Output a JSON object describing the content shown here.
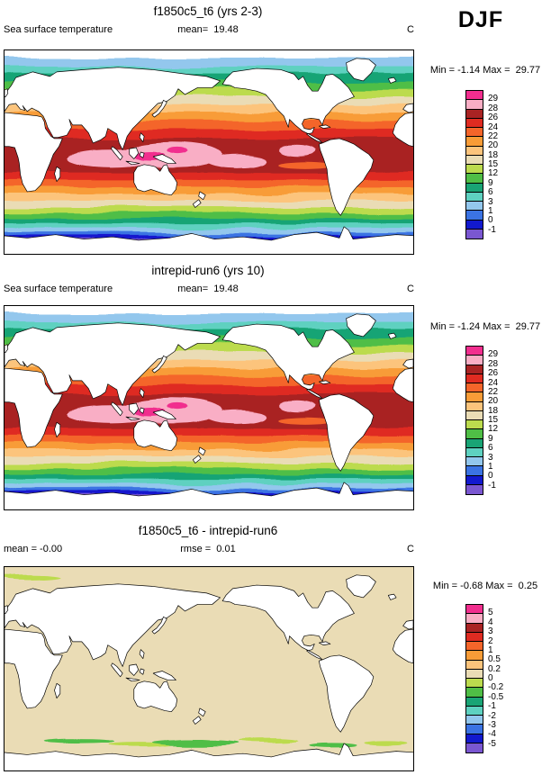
{
  "chart_data": {
    "type": "filled-contour-map-set",
    "season": "DJF",
    "panels": [
      {
        "title": "f1850c5_t6 (yrs 2-3)",
        "variable": "Sea surface temperature",
        "mean_label": "mean=  19.48",
        "units": "C",
        "minmax_label": "Min = -1.14 Max =  29.77",
        "colorbar_labels": [
          "29",
          "28",
          "26",
          "24",
          "22",
          "20",
          "18",
          "15",
          "12",
          "9",
          "6",
          "3",
          "1",
          "0",
          "-1"
        ],
        "map_kind": "sst"
      },
      {
        "title": "intrepid-run6 (yrs 10)",
        "variable": "Sea surface temperature",
        "mean_label": "mean=  19.48",
        "units": "C",
        "minmax_label": "Min = -1.24 Max =  29.77",
        "colorbar_labels": [
          "29",
          "28",
          "26",
          "24",
          "22",
          "20",
          "18",
          "15",
          "12",
          "9",
          "6",
          "3",
          "1",
          "0",
          "-1"
        ],
        "map_kind": "sst"
      },
      {
        "title": "f1850c5_t6 - intrepid-run6",
        "mean_label": "mean = -0.00",
        "rmse_label": "rmse =  0.01",
        "units": "C",
        "minmax_label": "Min = -0.68 Max =  0.25",
        "colorbar_labels": [
          "5",
          "4",
          "3",
          "2",
          "1",
          "0.5",
          "0.2",
          "0",
          "-0.2",
          "-0.5",
          "-1",
          "-2",
          "-3",
          "-4",
          "-5"
        ],
        "map_kind": "diff"
      }
    ],
    "palette_warm_to_cold": [
      "#F12E8E",
      "#F9AEC5",
      "#A92323",
      "#DF2B21",
      "#F4652A",
      "#F89C37",
      "#FCC47C",
      "#EADCB5",
      "#BCDB4E",
      "#4FBE46",
      "#19A475",
      "#5ED1C0",
      "#93C7ED",
      "#3B73E3",
      "#1219CE",
      "#7A57D1"
    ],
    "sst_latitude_bands": [
      [
        12,
        6,
        14
      ],
      [
        11,
        14,
        20
      ],
      [
        10,
        20,
        27
      ],
      [
        9,
        27,
        34
      ],
      [
        8,
        34,
        41
      ],
      [
        7,
        41,
        48
      ],
      [
        6,
        48,
        55
      ],
      [
        5,
        55,
        62
      ],
      [
        4,
        62,
        70
      ],
      [
        3,
        70,
        78
      ],
      [
        2,
        78,
        108
      ],
      [
        3,
        108,
        115
      ],
      [
        4,
        115,
        121
      ],
      [
        5,
        121,
        127
      ],
      [
        6,
        127,
        133
      ],
      [
        7,
        133,
        139
      ],
      [
        8,
        139,
        144
      ],
      [
        9,
        144,
        149
      ],
      [
        10,
        149,
        153
      ],
      [
        11,
        153,
        157
      ],
      [
        12,
        157,
        161
      ],
      [
        13,
        161,
        164
      ],
      [
        14,
        164,
        167
      ],
      [
        15,
        167,
        173
      ]
    ],
    "sst_overlay_ellipses": [
      [
        1,
        95,
        95,
        40,
        8
      ],
      [
        1,
        148,
        92,
        44,
        11
      ],
      [
        1,
        205,
        97,
        26,
        6
      ],
      [
        1,
        258,
        88,
        16,
        5
      ],
      [
        0,
        128,
        94,
        13,
        4
      ],
      [
        0,
        152,
        89,
        9,
        3.5
      ],
      [
        4,
        266,
        100,
        24,
        3
      ]
    ],
    "diff_background_color": 7,
    "diff_features": [
      [
        8,
        22,
        9,
        26,
        2.5
      ],
      [
        9,
        66,
        154,
        30,
        2.2
      ],
      [
        8,
        118,
        157,
        28,
        2
      ],
      [
        9,
        168,
        155,
        38,
        2.5
      ],
      [
        8,
        232,
        153,
        26,
        2
      ],
      [
        9,
        290,
        158,
        22,
        2
      ],
      [
        8,
        336,
        156,
        18,
        2
      ],
      [
        8,
        300,
        96,
        5,
        1.5
      ]
    ]
  }
}
